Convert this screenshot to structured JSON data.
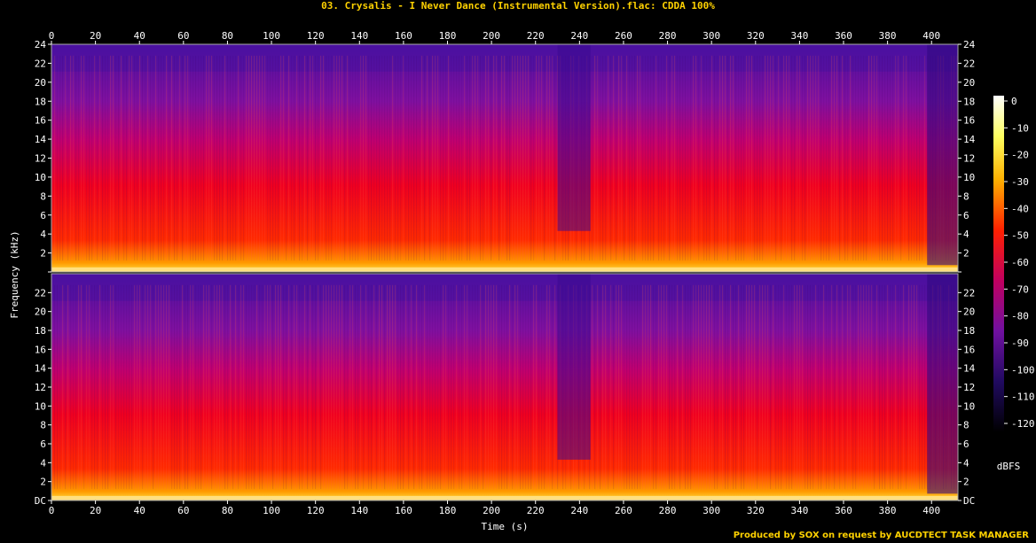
{
  "title": "03. Crysalis - I Never Dance (Instrumental Version).flac: CDDA 100%",
  "footer": "Produced by SOX on request by AUCDTECT TASK MANAGER",
  "chart_data": {
    "type": "heatmap",
    "xlabel": "Time (s)",
    "ylabel": "Frequency (kHz)",
    "xlim": [
      0,
      412
    ],
    "x_ticks": [
      0,
      20,
      40,
      60,
      80,
      100,
      120,
      140,
      160,
      180,
      200,
      220,
      240,
      260,
      280,
      300,
      320,
      340,
      360,
      380,
      400
    ],
    "ylim": [
      0,
      24
    ],
    "y_tick_labels": [
      "DC",
      "2",
      "4",
      "6",
      "8",
      "10",
      "12",
      "14",
      "16",
      "18",
      "20",
      "22",
      "24"
    ],
    "channels": 2,
    "colorbar": {
      "label": "dBFS",
      "range": [
        -120,
        0
      ],
      "ticks": [
        "0",
        "-10",
        "-20",
        "-30",
        "-40",
        "-50",
        "-60",
        "-70",
        "-80",
        "-90",
        "-100",
        "-110",
        "-120"
      ]
    },
    "colors": {
      "low": "#000000",
      "mid_low": "#2a0a6e",
      "mid": "#8a10a0",
      "mid_high": "#ff0000",
      "high": "#ffd000",
      "peak": "#ffffff"
    }
  }
}
